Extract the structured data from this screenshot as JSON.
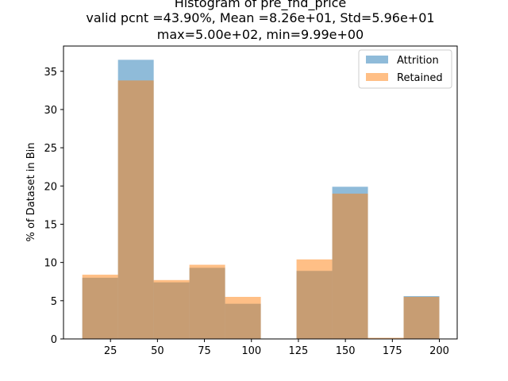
{
  "chart_data": {
    "type": "bar",
    "title_lines": [
      "Histogram of pre_fnd_price",
      "valid pcnt =43.90%, Mean =8.26e+01, Std=5.96e+01",
      "max=5.00e+02, min=9.99e+00"
    ],
    "xlabel": "",
    "ylabel": "% of Dataset in Bin",
    "xlim": [
      0.0,
      209.5
    ],
    "ylim": [
      0,
      38.3
    ],
    "x_ticks": [
      25,
      50,
      75,
      100,
      125,
      150,
      175,
      200
    ],
    "y_ticks": [
      0,
      5,
      10,
      15,
      20,
      25,
      30,
      35
    ],
    "bin_edges": [
      10.0,
      29.0,
      48.0,
      67.0,
      86.0,
      105.0,
      124.0,
      143.0,
      162.0,
      181.0,
      200.0
    ],
    "series": [
      {
        "name": "Attrition",
        "color": "#1f77b4",
        "alpha": 0.5,
        "values": [
          8.0,
          36.5,
          7.4,
          9.3,
          4.6,
          0,
          8.9,
          19.9,
          0,
          5.6
        ]
      },
      {
        "name": "Retained",
        "color": "#ff7f0e",
        "alpha": 0.5,
        "values": [
          8.4,
          33.8,
          7.7,
          9.7,
          5.5,
          0,
          10.4,
          19.0,
          0.15,
          5.5
        ]
      }
    ],
    "legend_position": "upper right",
    "grid": false
  }
}
